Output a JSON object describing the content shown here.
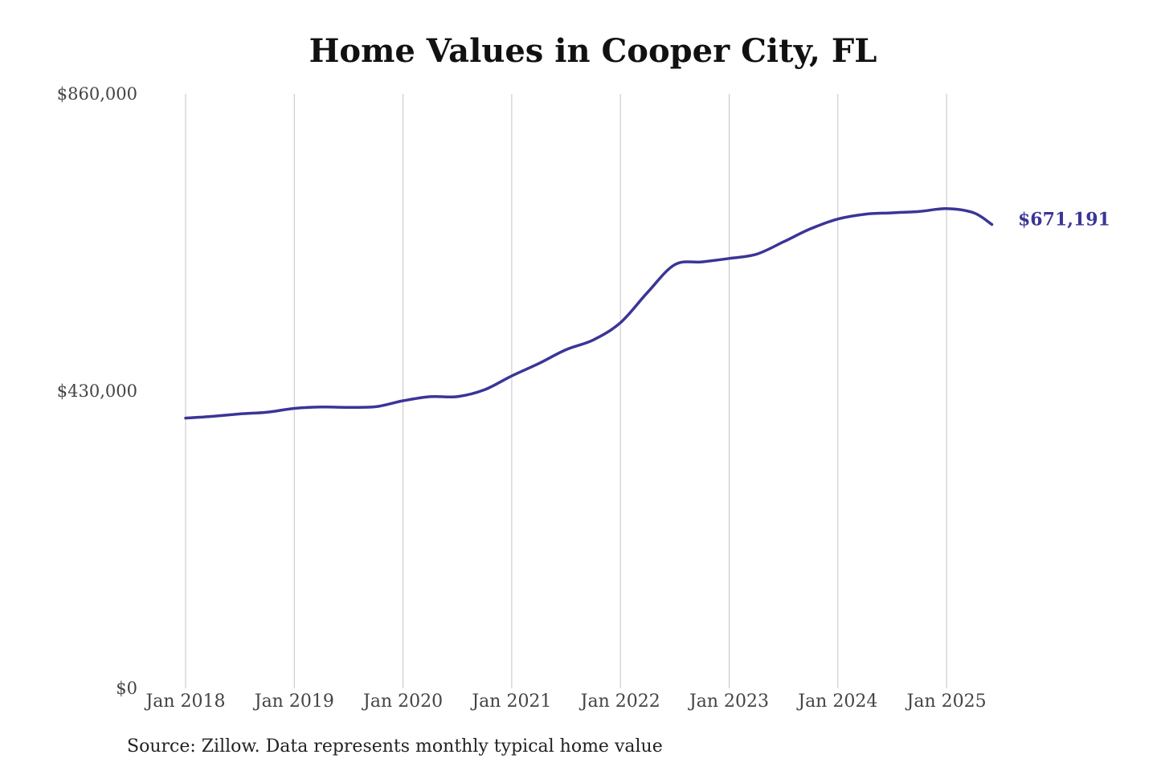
{
  "chart_data": {
    "type": "line",
    "title": "Home Values in Cooper City, FL",
    "xlabel": "",
    "ylabel": "",
    "ylim": [
      0,
      860000
    ],
    "y_ticks": [
      {
        "value": 0,
        "label": "$0"
      },
      {
        "value": 430000,
        "label": "$430,000"
      },
      {
        "value": 860000,
        "label": "$860,000"
      }
    ],
    "x_ticks": [
      {
        "date": "2018-01",
        "label": "Jan 2018"
      },
      {
        "date": "2019-01",
        "label": "Jan 2019"
      },
      {
        "date": "2020-01",
        "label": "Jan 2020"
      },
      {
        "date": "2021-01",
        "label": "Jan 2021"
      },
      {
        "date": "2022-01",
        "label": "Jan 2022"
      },
      {
        "date": "2023-01",
        "label": "Jan 2023"
      },
      {
        "date": "2024-01",
        "label": "Jan 2024"
      },
      {
        "date": "2025-01",
        "label": "Jan 2025"
      }
    ],
    "xlim": [
      "2018-01",
      "2025-06"
    ],
    "grid": "vertical",
    "line_color": "#3a3597",
    "end_label": "$671,191",
    "series": [
      {
        "name": "",
        "points": [
          {
            "x": "2018-01",
            "y": 391000
          },
          {
            "x": "2018-04",
            "y": 393500
          },
          {
            "x": "2018-07",
            "y": 397000
          },
          {
            "x": "2018-10",
            "y": 399500
          },
          {
            "x": "2019-01",
            "y": 405000
          },
          {
            "x": "2019-04",
            "y": 407000
          },
          {
            "x": "2019-07",
            "y": 406500
          },
          {
            "x": "2019-10",
            "y": 407500
          },
          {
            "x": "2020-01",
            "y": 416000
          },
          {
            "x": "2020-04",
            "y": 422000
          },
          {
            "x": "2020-07",
            "y": 422000
          },
          {
            "x": "2020-10",
            "y": 432000
          },
          {
            "x": "2021-01",
            "y": 452000
          },
          {
            "x": "2021-04",
            "y": 470000
          },
          {
            "x": "2021-07",
            "y": 490000
          },
          {
            "x": "2021-10",
            "y": 504000
          },
          {
            "x": "2022-01",
            "y": 529000
          },
          {
            "x": "2022-04",
            "y": 573000
          },
          {
            "x": "2022-07",
            "y": 613000
          },
          {
            "x": "2022-10",
            "y": 617000
          },
          {
            "x": "2023-01",
            "y": 622000
          },
          {
            "x": "2023-04",
            "y": 628000
          },
          {
            "x": "2023-07",
            "y": 646000
          },
          {
            "x": "2023-10",
            "y": 665000
          },
          {
            "x": "2024-01",
            "y": 679000
          },
          {
            "x": "2024-04",
            "y": 686000
          },
          {
            "x": "2024-07",
            "y": 688000
          },
          {
            "x": "2024-10",
            "y": 690000
          },
          {
            "x": "2025-01",
            "y": 694000
          },
          {
            "x": "2025-04",
            "y": 688000
          },
          {
            "x": "2025-06",
            "y": 671191
          }
        ]
      }
    ]
  },
  "source_note": "Source: Zillow. Data represents monthly typical home value"
}
